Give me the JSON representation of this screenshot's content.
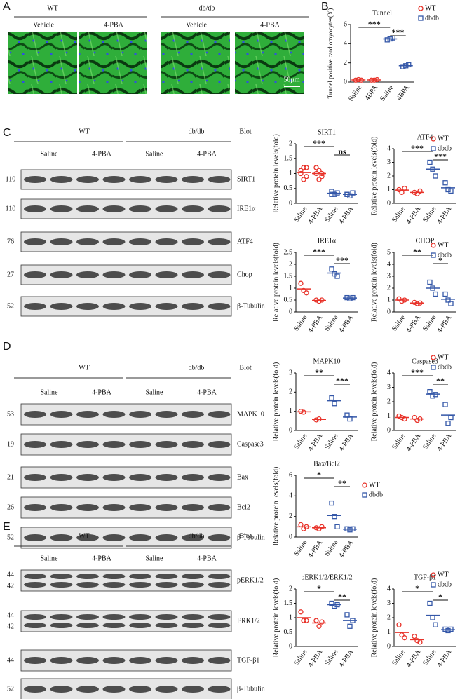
{
  "panel_letters": [
    "A",
    "B",
    "C",
    "D",
    "E"
  ],
  "panel_a": {
    "groups": [
      "WT",
      "db/db"
    ],
    "treatments": [
      "Vehicle",
      "4-PBA",
      "Vehicle",
      "4-PBA"
    ],
    "scale_bar": "50μm"
  },
  "blots": [
    {
      "groups": [
        "WT",
        "db/db"
      ],
      "heading": "Blot",
      "treatments": [
        "Saline",
        "4-PBA",
        "Saline",
        "4-PBA"
      ],
      "rows": [
        {
          "markers": [
            "110"
          ],
          "label": "SIRT1"
        },
        {
          "markers": [
            "110"
          ],
          "label": "IRE1α"
        },
        {
          "markers": [
            "76"
          ],
          "label": "ATF4"
        },
        {
          "markers": [
            "27"
          ],
          "label": "Chop"
        },
        {
          "markers": [
            "52"
          ],
          "label": "β-Tubulin"
        }
      ]
    },
    {
      "groups": [
        "WT",
        "db/db"
      ],
      "heading": "Blot",
      "treatments": [
        "Saline",
        "4-PBA",
        "Saline",
        "4-PBA"
      ],
      "rows": [
        {
          "markers": [
            "53"
          ],
          "label": "MAPK10"
        },
        {
          "markers": [
            "19"
          ],
          "label": "Caspase3"
        },
        {
          "markers": [
            "21"
          ],
          "label": "Bax"
        },
        {
          "markers": [
            "26"
          ],
          "label": "Bcl2"
        },
        {
          "markers": [
            "52"
          ],
          "label": "β-Tubulin"
        }
      ]
    },
    {
      "groups": [
        "WT",
        "db/db"
      ],
      "heading": "Blot",
      "treatments": [
        "Saline",
        "4-PBA",
        "Saline",
        "4-PBA"
      ],
      "rows": [
        {
          "markers": [
            "44",
            "42"
          ],
          "label": "pERK1/2"
        },
        {
          "markers": [
            "44",
            "42"
          ],
          "label": "ERK1/2"
        },
        {
          "markers": [
            "44"
          ],
          "label": "TGF-β1"
        },
        {
          "markers": [
            "52"
          ],
          "label": "β-Tubulin"
        }
      ]
    }
  ],
  "chart_data": [
    {
      "type": "dot",
      "title": "Tunnel",
      "ylabel": "Tunnel positive cardiomyocytes(%)",
      "categories": [
        "Saline",
        "4BPA",
        "Saline",
        "4BPA"
      ],
      "ylim": [
        0,
        6
      ],
      "yticks": [
        0,
        2,
        4,
        6
      ],
      "legend": true,
      "series": [
        {
          "name": "WT",
          "color": "#e8332a",
          "marker": "circle",
          "values": [
            [
              0.2,
              0.25,
              0.2
            ],
            [
              0.2,
              0.2,
              0.25
            ],
            null,
            null
          ]
        },
        {
          "name": "dbdb",
          "color": "#3457a8",
          "marker": "square",
          "values": [
            null,
            null,
            [
              4.4,
              4.5,
              4.6
            ],
            [
              1.6,
              1.7,
              1.8
            ]
          ]
        }
      ],
      "annotations": [
        {
          "pair": [
            0,
            2
          ],
          "label": "***"
        },
        {
          "pair": [
            2,
            3
          ],
          "label": "***"
        }
      ]
    },
    {
      "type": "dot",
      "title": "SIRT1",
      "ylabel": "Relative protein levels(fold)",
      "categories": [
        "Saline",
        "4-PBA",
        "Saline",
        "4-PBA"
      ],
      "ylim": [
        0,
        2
      ],
      "yticks": [
        0,
        0.5,
        1,
        1.5,
        2
      ],
      "legend": false,
      "series": [
        {
          "color": "#e8332a",
          "marker": "circle",
          "values": [
            [
              1.0,
              1.2,
              0.9,
              1.1,
              0.8,
              1.2
            ],
            [
              1.0,
              1.1,
              0.9,
              1.2,
              0.8,
              1.0
            ],
            null,
            null
          ]
        },
        {
          "color": "#3457a8",
          "marker": "square",
          "values": [
            null,
            null,
            [
              0.4,
              0.3,
              0.35,
              0.3
            ],
            [
              0.3,
              0.25,
              0.35,
              0.3
            ]
          ]
        }
      ],
      "annotations": [
        {
          "pair": [
            0,
            2
          ],
          "label": "***"
        },
        {
          "pair": [
            2,
            3
          ],
          "label": "ns"
        }
      ]
    },
    {
      "type": "dot",
      "title": "ATF4",
      "ylabel": "Relative protein levels(fold)",
      "categories": [
        "Saline",
        "4-PBA",
        "Saline",
        "4-PBA"
      ],
      "ylim": [
        0,
        4
      ],
      "yticks": [
        0,
        1,
        2,
        3,
        4
      ],
      "legend": true,
      "series": [
        {
          "name": "WT",
          "color": "#e8332a",
          "marker": "circle",
          "values": [
            [
              1.0,
              0.8,
              1.1
            ],
            [
              0.8,
              0.7,
              0.9
            ],
            null,
            null
          ]
        },
        {
          "name": "dbdb",
          "color": "#3457a8",
          "marker": "square",
          "values": [
            null,
            null,
            [
              3.0,
              2.5,
              2.0
            ],
            [
              1.5,
              1.0,
              0.9
            ]
          ]
        }
      ],
      "annotations": [
        {
          "pair": [
            0,
            2
          ],
          "label": "***"
        },
        {
          "pair": [
            2,
            3
          ],
          "label": "***"
        }
      ]
    },
    {
      "type": "dot",
      "title": "IRE1α",
      "ylabel": "Relative protein levels(fold)",
      "categories": [
        "Saline",
        "4-PBA",
        "Saline",
        "4-PBA"
      ],
      "ylim": [
        0,
        2.5
      ],
      "yticks": [
        0,
        0.5,
        1,
        1.5,
        2,
        2.5
      ],
      "legend": false,
      "series": [
        {
          "color": "#e8332a",
          "marker": "circle",
          "values": [
            [
              1.2,
              0.9,
              0.8
            ],
            [
              0.5,
              0.45,
              0.5
            ],
            null,
            null
          ]
        },
        {
          "color": "#3457a8",
          "marker": "square",
          "values": [
            null,
            null,
            [
              1.8,
              1.6,
              1.5
            ],
            [
              0.6,
              0.55,
              0.6
            ]
          ]
        }
      ],
      "annotations": [
        {
          "pair": [
            0,
            2
          ],
          "label": "***"
        },
        {
          "pair": [
            2,
            3
          ],
          "label": "***"
        }
      ]
    },
    {
      "type": "dot",
      "title": "CHOP",
      "ylabel": "Relative protein levels(fold)",
      "categories": [
        "Saline",
        "4-PBA",
        "Saline",
        "4-PBA"
      ],
      "ylim": [
        0,
        5
      ],
      "yticks": [
        0,
        1,
        2,
        3,
        4,
        5
      ],
      "legend": true,
      "series": [
        {
          "name": "WT",
          "color": "#e8332a",
          "marker": "circle",
          "values": [
            [
              1.1,
              0.9,
              1.0
            ],
            [
              0.8,
              0.7,
              0.75
            ],
            null,
            null
          ]
        },
        {
          "name": "dbdb",
          "color": "#3457a8",
          "marker": "square",
          "values": [
            null,
            null,
            [
              2.5,
              2.0,
              1.5
            ],
            [
              1.5,
              1.0,
              0.7
            ]
          ]
        }
      ],
      "annotations": [
        {
          "pair": [
            0,
            2
          ],
          "label": "**"
        },
        {
          "pair": [
            2,
            3
          ],
          "label": "*"
        }
      ]
    },
    {
      "type": "dot",
      "title": "MAPK10",
      "ylabel": "Relative protein levels(fold)",
      "categories": [
        "Saline",
        "4-PBA",
        "Saline",
        "4-PBA"
      ],
      "ylim": [
        0,
        3
      ],
      "yticks": [
        0,
        1,
        2,
        3
      ],
      "legend": false,
      "series": [
        {
          "color": "#e8332a",
          "marker": "circle",
          "values": [
            [
              1.0,
              0.95
            ],
            [
              0.55,
              0.6
            ],
            null,
            null
          ]
        },
        {
          "color": "#3457a8",
          "marker": "square",
          "values": [
            null,
            null,
            [
              1.7,
              1.4
            ],
            [
              0.8,
              0.6
            ]
          ]
        }
      ],
      "annotations": [
        {
          "pair": [
            0,
            2
          ],
          "label": "**"
        },
        {
          "pair": [
            2,
            3
          ],
          "label": "***"
        }
      ]
    },
    {
      "type": "dot",
      "title": "Caspase3",
      "ylabel": "Relative protein levels(fold)",
      "categories": [
        "Saline",
        "4-PBA",
        "Saline",
        "4-PBA"
      ],
      "ylim": [
        0,
        4
      ],
      "yticks": [
        0,
        1,
        2,
        3,
        4
      ],
      "legend": true,
      "series": [
        {
          "name": "WT",
          "color": "#e8332a",
          "marker": "circle",
          "values": [
            [
              1.0,
              0.9,
              0.8
            ],
            [
              0.9,
              0.7,
              0.8
            ],
            null,
            null
          ]
        },
        {
          "name": "dbdb",
          "color": "#3457a8",
          "marker": "square",
          "values": [
            null,
            null,
            [
              2.7,
              2.4,
              2.5
            ],
            [
              1.8,
              0.5,
              0.9
            ]
          ]
        }
      ],
      "annotations": [
        {
          "pair": [
            0,
            2
          ],
          "label": "***"
        },
        {
          "pair": [
            2,
            3
          ],
          "label": "**"
        }
      ]
    },
    {
      "type": "dot",
      "title": "Bax/Bcl2",
      "ylabel": "Relative protein levels(fold)",
      "categories": [
        "Saline",
        "4-PBA",
        "Saline",
        "4-PBA"
      ],
      "ylim": [
        0,
        6
      ],
      "yticks": [
        0,
        2,
        4,
        6
      ],
      "legend": true,
      "series": [
        {
          "name": "WT",
          "color": "#e8332a",
          "marker": "circle",
          "values": [
            [
              1.2,
              0.8,
              1.0
            ],
            [
              0.9,
              0.8,
              1.0
            ],
            null,
            null
          ]
        },
        {
          "name": "dbdb",
          "color": "#3457a8",
          "marker": "square",
          "values": [
            null,
            null,
            [
              3.3,
              2.0,
              1.0
            ],
            [
              0.8,
              0.7,
              0.8
            ]
          ]
        }
      ],
      "annotations": [
        {
          "pair": [
            0,
            2
          ],
          "label": "*"
        },
        {
          "pair": [
            2,
            3
          ],
          "label": "**"
        }
      ]
    },
    {
      "type": "dot",
      "title": "pERK1/2/ERK1/2",
      "ylabel": "Relative protein levels(fold)",
      "categories": [
        "Saline",
        "4-PBA",
        "Saline",
        "4-PBA"
      ],
      "ylim": [
        0,
        2
      ],
      "yticks": [
        0,
        0.5,
        1,
        1.5,
        2
      ],
      "legend": false,
      "series": [
        {
          "color": "#e8332a",
          "marker": "circle",
          "values": [
            [
              1.2,
              0.9,
              0.9
            ],
            [
              0.9,
              0.7,
              0.85
            ],
            null,
            null
          ]
        },
        {
          "color": "#3457a8",
          "marker": "square",
          "values": [
            null,
            null,
            [
              1.5,
              1.4,
              1.45
            ],
            [
              1.1,
              0.7,
              0.9
            ]
          ]
        }
      ],
      "annotations": [
        {
          "pair": [
            0,
            2
          ],
          "label": "*"
        },
        {
          "pair": [
            2,
            3
          ],
          "label": "**"
        }
      ]
    },
    {
      "type": "dot",
      "title": "TGF-β1",
      "ylabel": "Relative protein levels(fold)",
      "categories": [
        "Saline",
        "4-PBA",
        "Saline",
        "4-PBA"
      ],
      "ylim": [
        0,
        4
      ],
      "yticks": [
        0,
        1,
        2,
        3,
        4
      ],
      "legend": true,
      "series": [
        {
          "name": "WT",
          "color": "#e8332a",
          "marker": "circle",
          "values": [
            [
              1.5,
              0.8,
              0.6
            ],
            [
              0.7,
              0.4,
              0.3
            ],
            null,
            null
          ]
        },
        {
          "name": "dbdb",
          "color": "#3457a8",
          "marker": "square",
          "values": [
            null,
            null,
            [
              3.0,
              2.0,
              1.5
            ],
            [
              1.2,
              1.1,
              1.2
            ]
          ]
        }
      ],
      "annotations": [
        {
          "pair": [
            0,
            2
          ],
          "label": "*"
        },
        {
          "pair": [
            2,
            3
          ],
          "label": "*"
        }
      ]
    }
  ]
}
